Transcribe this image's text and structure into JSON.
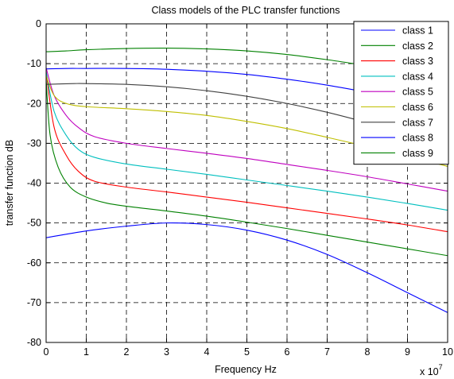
{
  "chart_data": {
    "type": "line",
    "title": "Class models of the PLC transfer functions",
    "xlabel": "Frequency Hz",
    "ylabel": "transfer function dB",
    "x_exponent_label": "x 10",
    "x_exponent_power": "7",
    "xlim": [
      0,
      10
    ],
    "ylim": [
      -80,
      0
    ],
    "xticks": [
      "0",
      "1",
      "2",
      "3",
      "4",
      "5",
      "6",
      "7",
      "8",
      "9",
      "10"
    ],
    "yticks": [
      "0",
      "-10",
      "-20",
      "-30",
      "-40",
      "-50",
      "-60",
      "-70",
      "-80"
    ],
    "grid": true,
    "legend_position": "top-right",
    "series": [
      {
        "name": "class 1",
        "color": "#0000ff",
        "x": [
          0,
          1,
          2,
          3,
          4,
          5,
          6,
          7,
          8,
          9,
          10
        ],
        "y": [
          -53.7,
          -52.0,
          -50.8,
          -50.0,
          -50.4,
          -51.8,
          -54.3,
          -57.9,
          -62.5,
          -67.5,
          -72.5
        ]
      },
      {
        "name": "class 2",
        "color": "#008000",
        "x": [
          0,
          0.5,
          1,
          2,
          3,
          4,
          5,
          6,
          7,
          8,
          9,
          10
        ],
        "y": [
          -7.0,
          -6.8,
          -6.5,
          -6.2,
          -6.1,
          -6.3,
          -6.8,
          -7.7,
          -9.0,
          -10.5,
          -12.0,
          -13.2
        ]
      },
      {
        "name": "class 3",
        "color": "#ff0000",
        "x": [
          0,
          0.2,
          0.5,
          0.8,
          1.2,
          2,
          3,
          4,
          5,
          6,
          7,
          8,
          9,
          10
        ],
        "y": [
          -12,
          -26,
          -33,
          -37,
          -39.5,
          -41,
          -42.2,
          -43.5,
          -44.8,
          -46.2,
          -47.6,
          -49.0,
          -50.5,
          -52.2
        ]
      },
      {
        "name": "class 4",
        "color": "#00bfbf",
        "x": [
          0,
          0.2,
          0.5,
          0.8,
          1.2,
          2,
          3,
          4,
          5,
          6,
          7,
          8,
          9,
          10
        ],
        "y": [
          -12,
          -22,
          -28,
          -31.5,
          -33.5,
          -35.2,
          -36.5,
          -37.8,
          -39.2,
          -40.6,
          -42.0,
          -43.5,
          -45.1,
          -46.8
        ]
      },
      {
        "name": "class 5",
        "color": "#bf00bf",
        "x": [
          0,
          0.2,
          0.5,
          0.8,
          1.2,
          2,
          3,
          4,
          5,
          6,
          7,
          8,
          9,
          10
        ],
        "y": [
          -11,
          -18,
          -23,
          -26,
          -28.3,
          -30.0,
          -31.3,
          -32.5,
          -33.8,
          -35.3,
          -36.8,
          -38.4,
          -40.2,
          -42.0
        ]
      },
      {
        "name": "class 6",
        "color": "#bfbf00",
        "x": [
          0,
          0.2,
          0.5,
          1,
          2,
          3,
          4,
          5,
          6,
          7,
          8,
          9,
          10
        ],
        "y": [
          -13,
          -18,
          -20,
          -20.8,
          -21.3,
          -22.0,
          -23.0,
          -24.5,
          -26.3,
          -28.5,
          -30.8,
          -33.2,
          -35.8
        ]
      },
      {
        "name": "class 7",
        "color": "#404040",
        "x": [
          0,
          0.3,
          0.7,
          1,
          2,
          3,
          4,
          5,
          6,
          7,
          8,
          9,
          10
        ],
        "y": [
          -15.2,
          -15.1,
          -15.0,
          -15.0,
          -15.2,
          -15.8,
          -16.8,
          -18.2,
          -20.0,
          -22.2,
          -24.8,
          -27.6,
          -30.6
        ]
      },
      {
        "name": "class 8",
        "color": "#0000ff",
        "x": [
          0,
          0.5,
          1,
          2,
          3,
          4,
          5,
          6,
          7,
          8,
          9,
          10
        ],
        "y": [
          -11.3,
          -11.2,
          -11.2,
          -11.2,
          -11.4,
          -11.9,
          -12.7,
          -13.9,
          -15.4,
          -17.2,
          -19.2,
          -21.4
        ]
      },
      {
        "name": "class 9",
        "color": "#008000",
        "x": [
          0,
          0.1,
          0.3,
          0.6,
          1,
          1.5,
          2,
          3,
          4,
          5,
          6,
          7,
          8,
          9,
          10
        ],
        "y": [
          -14,
          -28,
          -36,
          -41,
          -43.5,
          -45.0,
          -45.8,
          -47.0,
          -48.3,
          -49.8,
          -51.4,
          -53.1,
          -54.8,
          -56.5,
          -58.2
        ]
      }
    ]
  }
}
